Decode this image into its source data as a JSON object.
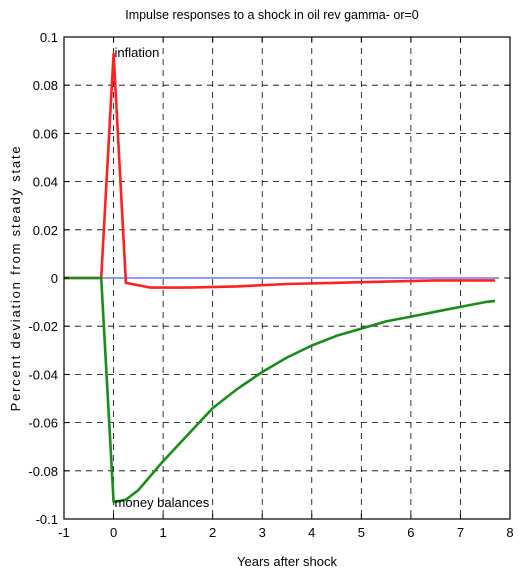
{
  "chart_data": {
    "type": "line",
    "title": "Impulse responses to a shock in oil rev gamma- or=0",
    "xlabel": "Years after shock",
    "ylabel": "Percent deviation from steady state",
    "xlim": [
      -1,
      8
    ],
    "ylim": [
      -0.1,
      0.1
    ],
    "xticks": [
      "-1",
      "0",
      "1",
      "2",
      "3",
      "4",
      "5",
      "6",
      "7",
      "8"
    ],
    "yticks": [
      "0.1",
      "0.08",
      "0.06",
      "0.04",
      "0.02",
      "0",
      "-0.02",
      "-0.04",
      "-0.06",
      "-0.08",
      "-0.1"
    ],
    "grid": true,
    "series": [
      {
        "name": "inflation",
        "color": "#ff2020",
        "points": [
          [
            -1,
            0
          ],
          [
            -0.25,
            0
          ],
          [
            0,
            0.093
          ],
          [
            0.25,
            -0.002
          ],
          [
            0.75,
            -0.004
          ],
          [
            1.5,
            -0.004
          ],
          [
            2.5,
            -0.0035
          ],
          [
            3.5,
            -0.0025
          ],
          [
            4.5,
            -0.002
          ],
          [
            5.5,
            -0.0015
          ],
          [
            6.5,
            -0.001
          ],
          [
            7.7,
            -0.001
          ]
        ]
      },
      {
        "name": "money balances",
        "color": "#1a8c1a",
        "points": [
          [
            -1,
            0
          ],
          [
            -0.25,
            0
          ],
          [
            0,
            -0.093
          ],
          [
            0.25,
            -0.092
          ],
          [
            0.5,
            -0.088
          ],
          [
            1,
            -0.076
          ],
          [
            1.5,
            -0.065
          ],
          [
            2,
            -0.054
          ],
          [
            2.5,
            -0.046
          ],
          [
            3,
            -0.039
          ],
          [
            3.5,
            -0.033
          ],
          [
            4,
            -0.028
          ],
          [
            4.5,
            -0.024
          ],
          [
            5,
            -0.021
          ],
          [
            5.5,
            -0.018
          ],
          [
            6,
            -0.016
          ],
          [
            6.5,
            -0.014
          ],
          [
            7,
            -0.012
          ],
          [
            7.5,
            -0.01
          ],
          [
            7.7,
            -0.0095
          ]
        ]
      },
      {
        "name": "",
        "color": "#2b2bff",
        "points": [
          [
            -1,
            0
          ],
          [
            7.7,
            0
          ]
        ]
      }
    ],
    "annotations": [
      {
        "text": "inflation",
        "x": 0,
        "y": 0.093
      },
      {
        "text": "money balances",
        "x": 0,
        "y": -0.093
      }
    ]
  }
}
